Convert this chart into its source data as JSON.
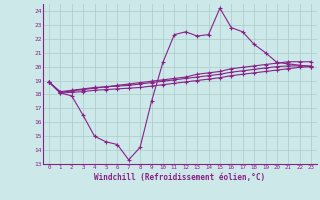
{
  "background_color": "#cce8e8",
  "grid_color": "#aacccc",
  "line_color": "#882288",
  "xlabel": "Windchill (Refroidissement éolien,°C)",
  "ylim": [
    13,
    24.5
  ],
  "xlim": [
    -0.5,
    23.5
  ],
  "yticks": [
    13,
    14,
    15,
    16,
    17,
    18,
    19,
    20,
    21,
    22,
    23,
    24
  ],
  "xticks": [
    0,
    1,
    2,
    3,
    4,
    5,
    6,
    7,
    8,
    9,
    10,
    11,
    12,
    13,
    14,
    15,
    16,
    17,
    18,
    19,
    20,
    21,
    22,
    23
  ],
  "line1_x": [
    0,
    1,
    2,
    3,
    4,
    5,
    6,
    7,
    8,
    9,
    10,
    11,
    12,
    13,
    14,
    15,
    16,
    17,
    18,
    19,
    20,
    21,
    22,
    23
  ],
  "line1_y": [
    18.9,
    18.1,
    17.9,
    16.5,
    15.0,
    14.6,
    14.4,
    13.3,
    14.2,
    17.5,
    20.3,
    22.3,
    22.5,
    22.2,
    22.3,
    24.2,
    22.8,
    22.5,
    21.6,
    21.0,
    20.3,
    20.2,
    20.1,
    20.0
  ],
  "line2_x": [
    0,
    1,
    2,
    3,
    4,
    5,
    6,
    7,
    8,
    9,
    10,
    11,
    12,
    13,
    14,
    15,
    16,
    17,
    18,
    19,
    20,
    21,
    22,
    23
  ],
  "line2_y": [
    18.9,
    18.1,
    18.15,
    18.2,
    18.3,
    18.35,
    18.4,
    18.45,
    18.5,
    18.6,
    18.7,
    18.8,
    18.9,
    19.0,
    19.1,
    19.2,
    19.35,
    19.45,
    19.55,
    19.65,
    19.75,
    19.85,
    19.95,
    20.0
  ],
  "line3_x": [
    0,
    1,
    2,
    3,
    4,
    5,
    6,
    7,
    8,
    9,
    10,
    11,
    12,
    13,
    14,
    15,
    16,
    17,
    18,
    19,
    20,
    21,
    22,
    23
  ],
  "line3_y": [
    18.9,
    18.2,
    18.3,
    18.4,
    18.5,
    18.55,
    18.6,
    18.65,
    18.75,
    18.85,
    18.95,
    19.05,
    19.15,
    19.25,
    19.35,
    19.45,
    19.6,
    19.7,
    19.8,
    19.9,
    20.0,
    20.05,
    20.05,
    20.05
  ],
  "line4_x": [
    0,
    1,
    2,
    3,
    4,
    5,
    6,
    7,
    8,
    9,
    10,
    11,
    12,
    13,
    14,
    15,
    16,
    17,
    18,
    19,
    20,
    21,
    22,
    23
  ],
  "line4_y": [
    18.9,
    18.15,
    18.25,
    18.35,
    18.45,
    18.55,
    18.65,
    18.75,
    18.85,
    18.95,
    19.05,
    19.15,
    19.25,
    19.45,
    19.55,
    19.65,
    19.85,
    19.95,
    20.05,
    20.15,
    20.25,
    20.35,
    20.35,
    20.35
  ]
}
